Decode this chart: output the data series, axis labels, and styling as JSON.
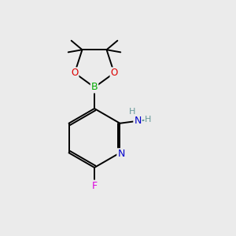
{
  "background_color": "#ebebeb",
  "atom_colors": {
    "C": "#000000",
    "N": "#0000cc",
    "O": "#dd0000",
    "B": "#00aa00",
    "F": "#dd00dd",
    "H": "#669999"
  },
  "figsize": [
    3.0,
    3.0
  ],
  "dpi": 100,
  "lw": 1.4
}
